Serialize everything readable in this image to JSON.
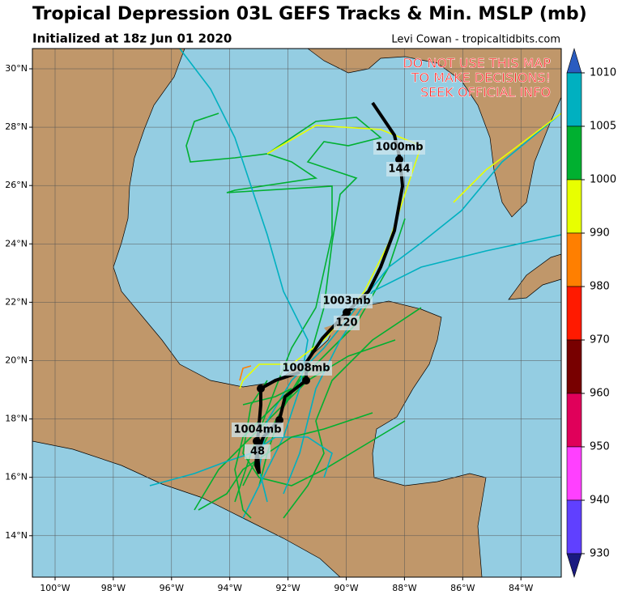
{
  "header": {
    "title": "Tropical Depression 03L GEFS Tracks & Min. MSLP (mb)",
    "subtitle": "Initialized at 18z Jun 01 2020",
    "credit": "Levi Cowan - tropicaltidbits.com"
  },
  "warning": [
    "DO NOT USE THIS MAP",
    "TO MAKE DECISIONS!",
    "SEEK OFFICIAL INFO"
  ],
  "map": {
    "lat_labels": [
      "30°N",
      "28°N",
      "26°N",
      "24°N",
      "22°N",
      "20°N",
      "18°N",
      "16°N",
      "14°N"
    ],
    "lon_labels": [
      "100°W",
      "98°W",
      "96°W",
      "94°W",
      "92°W",
      "90°W",
      "88°W",
      "86°W",
      "84°W"
    ],
    "storm_labels": [
      {
        "pressure": "1000mb",
        "hour": "144"
      },
      {
        "pressure": "1003mb",
        "hour": "120"
      },
      {
        "pressure": "1008mb"
      },
      {
        "pressure": "1004mb",
        "hour": "48"
      }
    ]
  },
  "colorbar": {
    "labels": [
      "1010",
      "1005",
      "1000",
      "990",
      "980",
      "970",
      "960",
      "950",
      "940",
      "930"
    ]
  }
}
